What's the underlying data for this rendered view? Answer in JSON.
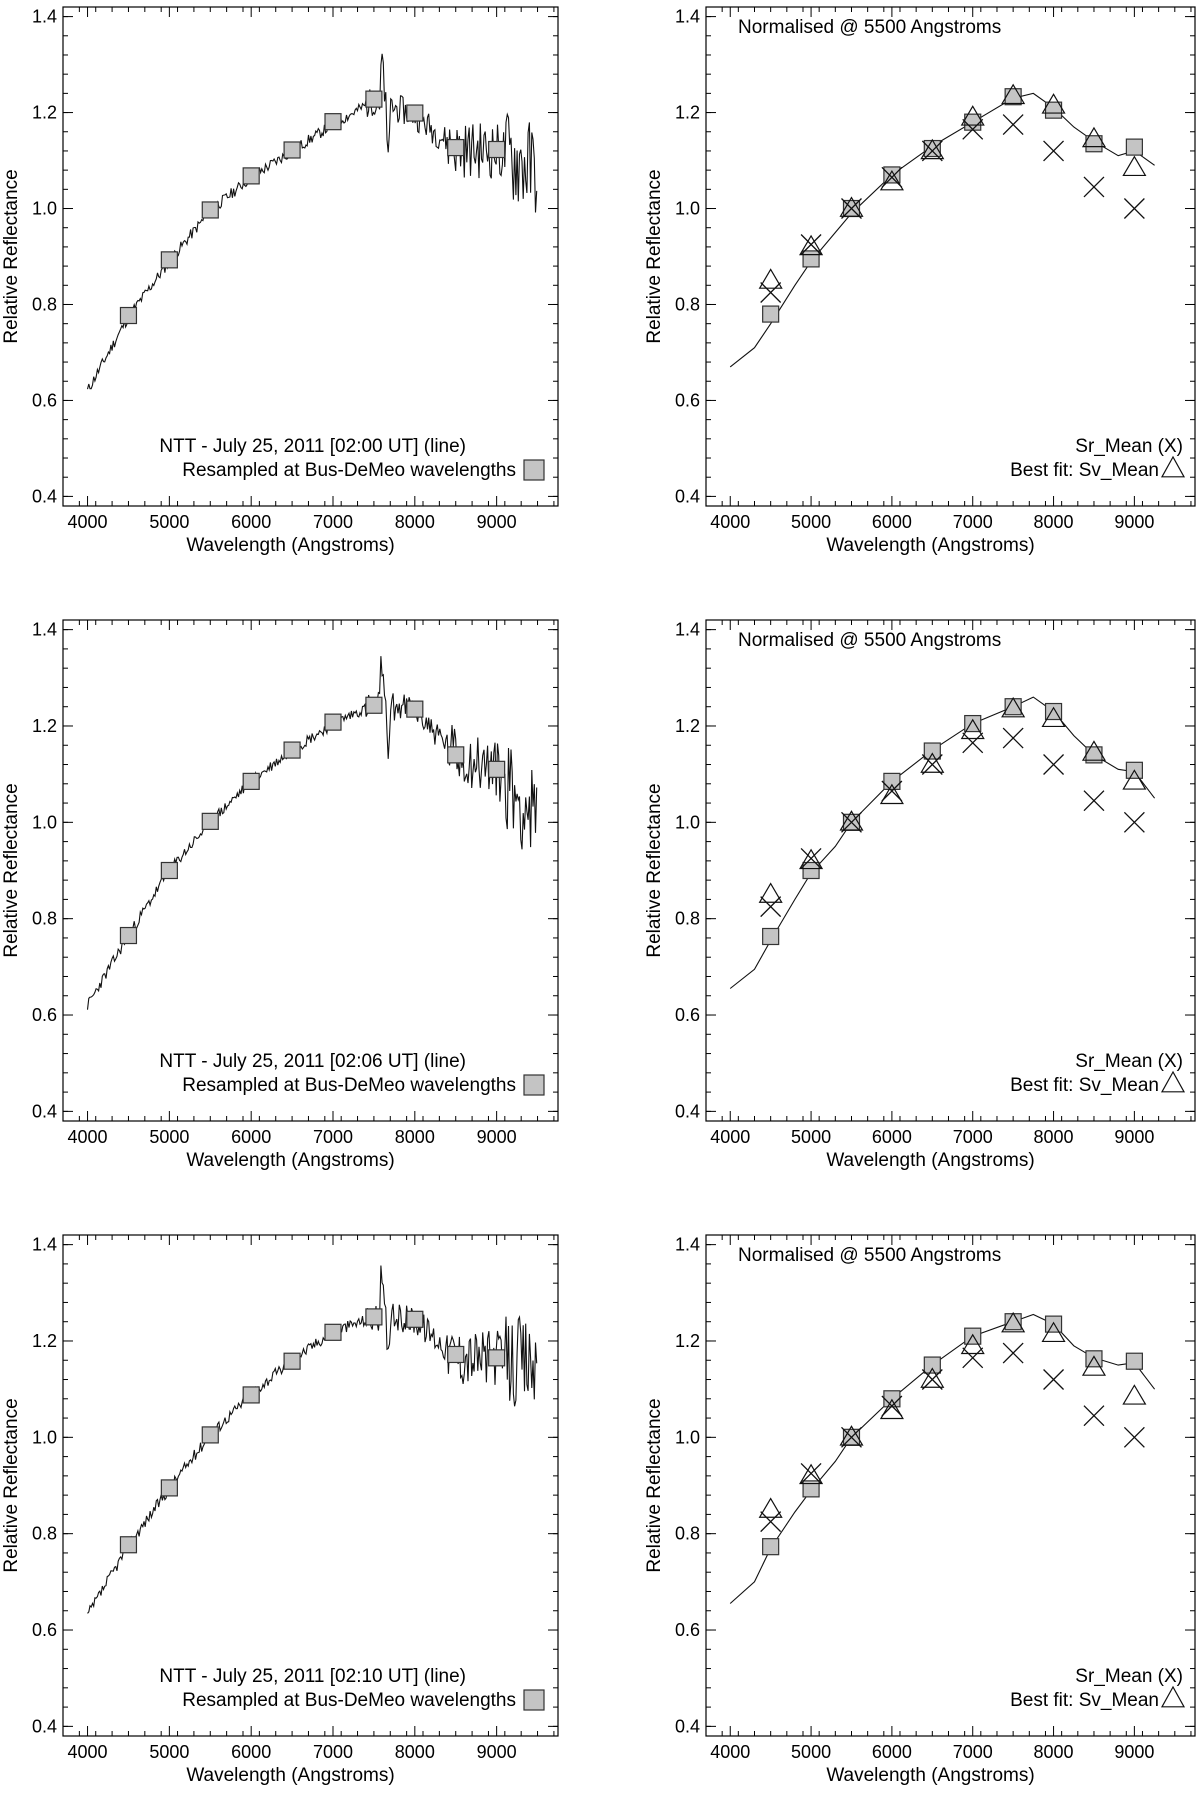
{
  "figure": {
    "panels_description": "Three observations; left: NTT spectrum with resampled points, right: normalised comparison with taxonomic means"
  },
  "chart_data": [
    {
      "id": "r1_left",
      "type": "line",
      "xlabel": "Wavelength (Angstroms)",
      "ylabel": "Relative Reflectance",
      "xlim": [
        3700,
        9750
      ],
      "ylim": [
        0.38,
        1.42
      ],
      "xticks": [
        4000,
        5000,
        6000,
        7000,
        8000,
        9000
      ],
      "yticks": [
        0.4,
        0.6,
        0.8,
        1.0,
        1.2,
        1.4
      ],
      "legend": [
        "NTT - July 25, 2011 [02:00 UT]  (line)",
        "Resampled at Bus-DeMeo wavelengths"
      ],
      "seed": 11,
      "series": [
        {
          "name": "NTT spectrum",
          "kind": "line",
          "x_range": [
            4000,
            9500
          ],
          "step": 15,
          "trend": [
            [
              4000,
              0.62
            ],
            [
              4500,
              0.775
            ],
            [
              5000,
              0.89
            ],
            [
              5500,
              0.995
            ],
            [
              6000,
              1.065
            ],
            [
              6500,
              1.12
            ],
            [
              7000,
              1.175
            ],
            [
              7500,
              1.225
            ],
            [
              8000,
              1.195
            ],
            [
              8500,
              1.125
            ],
            [
              9000,
              1.12
            ],
            [
              9500,
              1.08
            ]
          ]
        },
        {
          "name": "Resampled at Bus-DeMeo wavelengths",
          "kind": "square",
          "x": [
            4500,
            5000,
            5500,
            6000,
            6500,
            7000,
            7500,
            8000,
            8500,
            9000
          ],
          "y": [
            0.777,
            0.893,
            0.997,
            1.068,
            1.122,
            1.181,
            1.228,
            1.199,
            1.127,
            1.123
          ]
        }
      ]
    },
    {
      "id": "r1_right",
      "type": "scatter",
      "xlabel": "Wavelength (Angstroms)",
      "ylabel": "Relative Reflectance",
      "xlim": [
        3700,
        9750
      ],
      "ylim": [
        0.38,
        1.42
      ],
      "xticks": [
        4000,
        5000,
        6000,
        7000,
        8000,
        9000
      ],
      "yticks": [
        0.4,
        0.6,
        0.8,
        1.0,
        1.2,
        1.4
      ],
      "title": "Normalised @ 5500   Angstroms",
      "legend": [
        "Sr_Mean (X)",
        "Best fit: Sv_Mean"
      ],
      "series": [
        {
          "name": "Best fit curve",
          "kind": "line",
          "x": [
            4000,
            4300,
            4500,
            4800,
            5000,
            5300,
            5500,
            6000,
            6500,
            7000,
            7500,
            7750,
            8000,
            8250,
            8500,
            8800,
            9000,
            9250
          ],
          "y": [
            0.67,
            0.71,
            0.76,
            0.84,
            0.89,
            0.95,
            0.99,
            1.07,
            1.13,
            1.18,
            1.23,
            1.24,
            1.21,
            1.17,
            1.14,
            1.11,
            1.12,
            1.09
          ]
        },
        {
          "name": "Resampled",
          "kind": "square",
          "x": [
            4500,
            5000,
            5500,
            6000,
            6500,
            7000,
            7500,
            8000,
            8500,
            9000
          ],
          "y": [
            0.78,
            0.895,
            1.0,
            1.07,
            1.125,
            1.18,
            1.233,
            1.205,
            1.135,
            1.128
          ]
        },
        {
          "name": "Sv_Mean",
          "kind": "triangle",
          "x": [
            4500,
            5000,
            5500,
            6000,
            6500,
            7000,
            7500,
            8000,
            8500,
            9000
          ],
          "y": [
            0.85,
            0.92,
            1.0,
            1.055,
            1.12,
            1.19,
            1.235,
            1.215,
            1.145,
            1.085
          ]
        },
        {
          "name": "Sr_Mean",
          "kind": "x",
          "x": [
            4500,
            5000,
            5500,
            6000,
            6500,
            7000,
            7500,
            8000,
            8500,
            9000
          ],
          "y": [
            0.825,
            0.925,
            1.0,
            1.065,
            1.12,
            1.165,
            1.175,
            1.12,
            1.045,
            1.0
          ]
        }
      ]
    },
    {
      "id": "r2_left",
      "type": "line",
      "xlabel": "Wavelength (Angstroms)",
      "ylabel": "Relative Reflectance",
      "xlim": [
        3700,
        9750
      ],
      "ylim": [
        0.38,
        1.42
      ],
      "xticks": [
        4000,
        5000,
        6000,
        7000,
        8000,
        9000
      ],
      "yticks": [
        0.4,
        0.6,
        0.8,
        1.0,
        1.2,
        1.4
      ],
      "legend": [
        "NTT - July 25, 2011 [02:06 UT]  (line)",
        "Resampled at Bus-DeMeo wavelengths"
      ],
      "seed": 23,
      "series": [
        {
          "name": "NTT spectrum",
          "kind": "line",
          "x_range": [
            4000,
            9500
          ],
          "step": 15,
          "trend": [
            [
              4000,
              0.62
            ],
            [
              4500,
              0.765
            ],
            [
              5000,
              0.9
            ],
            [
              5500,
              1.0
            ],
            [
              6000,
              1.085
            ],
            [
              6500,
              1.15
            ],
            [
              7000,
              1.205
            ],
            [
              7500,
              1.245
            ],
            [
              8000,
              1.235
            ],
            [
              8500,
              1.14
            ],
            [
              9000,
              1.11
            ],
            [
              9500,
              1.0
            ]
          ]
        },
        {
          "name": "Resampled at Bus-DeMeo wavelengths",
          "kind": "square",
          "x": [
            4500,
            5000,
            5500,
            6000,
            6500,
            7000,
            7500,
            8000,
            8500,
            9000
          ],
          "y": [
            0.765,
            0.9,
            1.002,
            1.085,
            1.15,
            1.208,
            1.243,
            1.235,
            1.14,
            1.11
          ]
        }
      ]
    },
    {
      "id": "r2_right",
      "type": "scatter",
      "xlabel": "Wavelength (Angstroms)",
      "ylabel": "Relative Reflectance",
      "xlim": [
        3700,
        9750
      ],
      "ylim": [
        0.38,
        1.42
      ],
      "xticks": [
        4000,
        5000,
        6000,
        7000,
        8000,
        9000
      ],
      "yticks": [
        0.4,
        0.6,
        0.8,
        1.0,
        1.2,
        1.4
      ],
      "title": "Normalised @ 5500   Angstroms",
      "legend": [
        "Sr_Mean (X)",
        "Best fit: Sv_Mean"
      ],
      "series": [
        {
          "name": "Best fit curve",
          "kind": "line",
          "x": [
            4000,
            4300,
            4500,
            4800,
            5000,
            5300,
            5500,
            6000,
            6500,
            7000,
            7500,
            7750,
            8000,
            8250,
            8500,
            8800,
            9000,
            9250
          ],
          "y": [
            0.655,
            0.695,
            0.755,
            0.84,
            0.895,
            0.95,
            1.0,
            1.085,
            1.15,
            1.205,
            1.24,
            1.26,
            1.23,
            1.18,
            1.14,
            1.11,
            1.105,
            1.05
          ]
        },
        {
          "name": "Resampled",
          "kind": "square",
          "x": [
            4500,
            5000,
            5500,
            6000,
            6500,
            7000,
            7500,
            8000,
            8500,
            9000
          ],
          "y": [
            0.763,
            0.9,
            1.0,
            1.085,
            1.148,
            1.205,
            1.24,
            1.23,
            1.14,
            1.108
          ]
        },
        {
          "name": "Sv_Mean",
          "kind": "triangle",
          "x": [
            4500,
            5000,
            5500,
            6000,
            6500,
            7000,
            7500,
            8000,
            8500,
            9000
          ],
          "y": [
            0.85,
            0.92,
            1.0,
            1.055,
            1.12,
            1.19,
            1.235,
            1.215,
            1.145,
            1.085
          ]
        },
        {
          "name": "Sr_Mean",
          "kind": "x",
          "x": [
            4500,
            5000,
            5500,
            6000,
            6500,
            7000,
            7500,
            8000,
            8500,
            9000
          ],
          "y": [
            0.825,
            0.925,
            1.0,
            1.065,
            1.12,
            1.165,
            1.175,
            1.12,
            1.045,
            1.0
          ]
        }
      ]
    },
    {
      "id": "r3_left",
      "type": "line",
      "xlabel": "Wavelength (Angstroms)",
      "ylabel": "Relative Reflectance",
      "xlim": [
        3700,
        9750
      ],
      "ylim": [
        0.38,
        1.42
      ],
      "xticks": [
        4000,
        5000,
        6000,
        7000,
        8000,
        9000
      ],
      "yticks": [
        0.4,
        0.6,
        0.8,
        1.0,
        1.2,
        1.4
      ],
      "legend": [
        "NTT - July 25, 2011 [02:10 UT]  (line)",
        "Resampled at Bus-DeMeo wavelengths"
      ],
      "seed": 37,
      "series": [
        {
          "name": "NTT spectrum",
          "kind": "line",
          "x_range": [
            4000,
            9500
          ],
          "step": 15,
          "trend": [
            [
              4000,
              0.63
            ],
            [
              4500,
              0.775
            ],
            [
              5000,
              0.895
            ],
            [
              5500,
              1.005
            ],
            [
              6000,
              1.09
            ],
            [
              6500,
              1.16
            ],
            [
              7000,
              1.22
            ],
            [
              7500,
              1.25
            ],
            [
              8000,
              1.245
            ],
            [
              8500,
              1.17
            ],
            [
              9000,
              1.165
            ],
            [
              9500,
              1.15
            ]
          ]
        },
        {
          "name": "Resampled at Bus-DeMeo wavelengths",
          "kind": "square",
          "x": [
            4500,
            5000,
            5500,
            6000,
            6500,
            7000,
            7500,
            8000,
            8500,
            9000
          ],
          "y": [
            0.777,
            0.895,
            1.005,
            1.088,
            1.158,
            1.218,
            1.25,
            1.245,
            1.172,
            1.165
          ]
        }
      ]
    },
    {
      "id": "r3_right",
      "type": "scatter",
      "xlabel": "Wavelength (Angstroms)",
      "ylabel": "Relative Reflectance",
      "xlim": [
        3700,
        9750
      ],
      "ylim": [
        0.38,
        1.42
      ],
      "xticks": [
        4000,
        5000,
        6000,
        7000,
        8000,
        9000
      ],
      "yticks": [
        0.4,
        0.6,
        0.8,
        1.0,
        1.2,
        1.4
      ],
      "title": "Normalised @ 5500   Angstroms",
      "legend": [
        "Sr_Mean (X)",
        "Best fit: Sv_Mean"
      ],
      "series": [
        {
          "name": "Best fit curve",
          "kind": "line",
          "x": [
            4000,
            4300,
            4500,
            4800,
            5000,
            5300,
            5500,
            6000,
            6500,
            7000,
            7500,
            7750,
            8000,
            8250,
            8500,
            8800,
            9000,
            9250
          ],
          "y": [
            0.655,
            0.7,
            0.77,
            0.845,
            0.89,
            0.95,
            1.0,
            1.08,
            1.15,
            1.21,
            1.24,
            1.255,
            1.235,
            1.19,
            1.165,
            1.15,
            1.155,
            1.1
          ]
        },
        {
          "name": "Resampled",
          "kind": "square",
          "x": [
            4500,
            5000,
            5500,
            6000,
            6500,
            7000,
            7500,
            8000,
            8500,
            9000
          ],
          "y": [
            0.773,
            0.893,
            1.0,
            1.08,
            1.15,
            1.21,
            1.24,
            1.235,
            1.163,
            1.158
          ]
        },
        {
          "name": "Sv_Mean",
          "kind": "triangle",
          "x": [
            4500,
            5000,
            5500,
            6000,
            6500,
            7000,
            7500,
            8000,
            8500,
            9000
          ],
          "y": [
            0.85,
            0.92,
            1.0,
            1.055,
            1.12,
            1.19,
            1.235,
            1.215,
            1.145,
            1.085
          ]
        },
        {
          "name": "Sr_Mean",
          "kind": "x",
          "x": [
            4500,
            5000,
            5500,
            6000,
            6500,
            7000,
            7500,
            8000,
            8500,
            9000
          ],
          "y": [
            0.825,
            0.925,
            1.0,
            1.065,
            1.12,
            1.165,
            1.175,
            1.12,
            1.045,
            1.0
          ]
        }
      ]
    }
  ]
}
